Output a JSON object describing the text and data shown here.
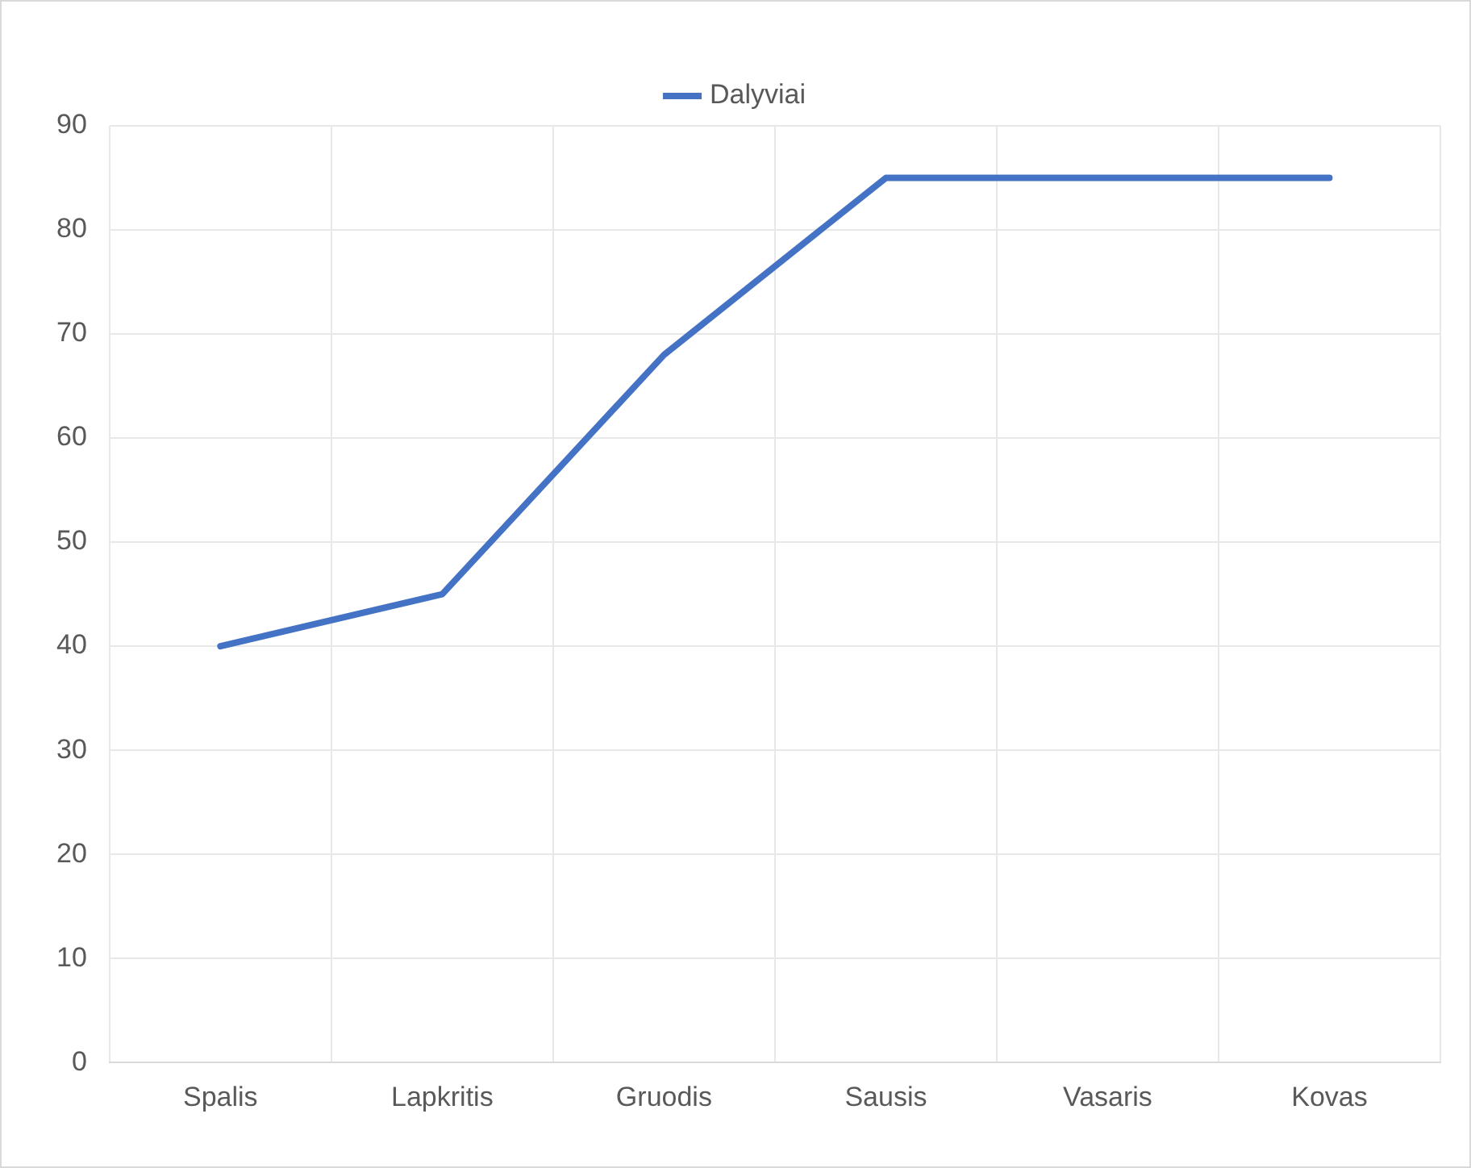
{
  "chart_data": {
    "type": "line",
    "categories": [
      "Spalis",
      "Lapkritis",
      "Gruodis",
      "Sausis",
      "Vasaris",
      "Kovas"
    ],
    "series": [
      {
        "name": "Dalyviai",
        "color": "#4472c4",
        "values": [
          40,
          45,
          68,
          85,
          85,
          85
        ]
      }
    ],
    "ylim": [
      0,
      90
    ],
    "yticks": [
      0,
      10,
      20,
      30,
      40,
      50,
      60,
      70,
      80,
      90
    ],
    "grid": true,
    "legend": "top",
    "marker": "none",
    "line_style": "solid"
  }
}
